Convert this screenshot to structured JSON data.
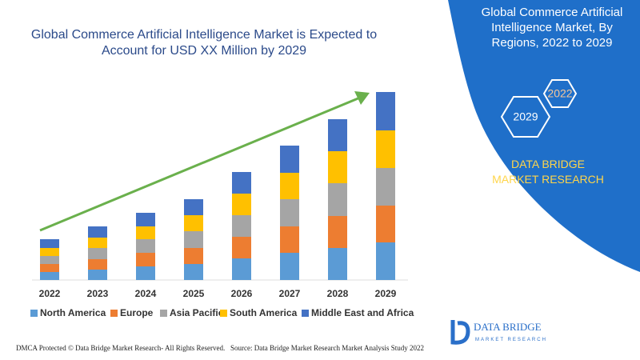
{
  "chart_data": {
    "type": "stacked_bar",
    "title": "Global Commerce Artificial Intelligence Market is Expected to Account for USD XX Million by 2029",
    "categories": [
      "2022",
      "2023",
      "2024",
      "2025",
      "2026",
      "2027",
      "2028",
      "2029"
    ],
    "series": [
      {
        "name": "North America",
        "color": "#5b9bd5",
        "values": [
          10,
          13,
          17,
          20,
          27,
          34,
          40,
          47
        ]
      },
      {
        "name": "Europe",
        "color": "#ed7d31",
        "values": [
          10,
          13,
          17,
          20,
          27,
          33,
          40,
          46
        ]
      },
      {
        "name": "Asia Pacific",
        "color": "#a5a5a5",
        "values": [
          10,
          14,
          17,
          21,
          27,
          34,
          41,
          47
        ]
      },
      {
        "name": "South America",
        "color": "#ffc000",
        "values": [
          10,
          13,
          16,
          20,
          27,
          33,
          40,
          47
        ]
      },
      {
        "name": "Middle East and Africa",
        "color": "#4472c4",
        "values": [
          11,
          14,
          17,
          20,
          27,
          34,
          40,
          48
        ]
      }
    ],
    "ylim": [
      0,
      240
    ]
  },
  "panel": {
    "title": "Global Commerce Artificial Intelligence Market, By Regions, 2022 to 2029",
    "hex_years": [
      "2022",
      "2029"
    ],
    "brand": "DATA BRIDGE MARKET RESEARCH"
  },
  "logo": {
    "name": "DATA BRIDGE",
    "tagline": "MARKET RESEARCH"
  },
  "footer": {
    "left": "DMCA Protected © Data Bridge Market Research- All Rights Reserved.",
    "right": "Source: Data Bridge Market Research Market Analysis Study 2022"
  }
}
